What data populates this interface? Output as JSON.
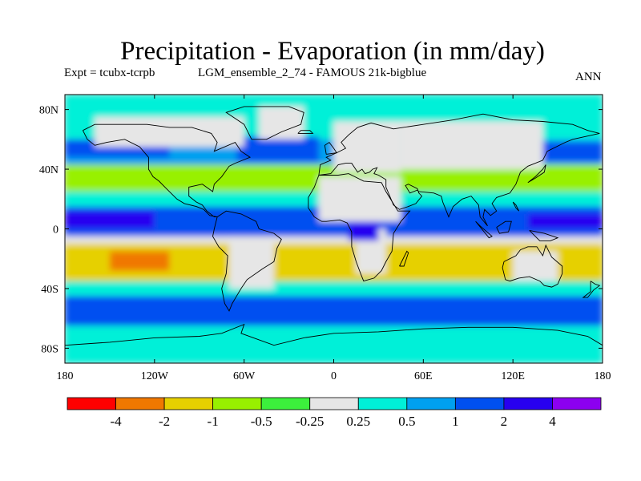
{
  "title": "Precipitation - Evaporation (in mm/day)",
  "subtitle_left": "Expt = tcubx-tcrpb",
  "subtitle_center": "LGM_ensemble_2_74 - FAMOUS 21k-bigblue",
  "subtitle_right": "ANN",
  "map": {
    "lon_range": [
      -180,
      180
    ],
    "lat_range": [
      -90,
      90
    ],
    "x_ticks": [
      {
        "value": -180,
        "label": "180"
      },
      {
        "value": -120,
        "label": "120W"
      },
      {
        "value": -60,
        "label": "60W"
      },
      {
        "value": 0,
        "label": "0"
      },
      {
        "value": 60,
        "label": "60E"
      },
      {
        "value": 120,
        "label": "120E"
      },
      {
        "value": 180,
        "label": "180"
      }
    ],
    "y_ticks": [
      {
        "value": 80,
        "label": "80N"
      },
      {
        "value": 40,
        "label": "40N"
      },
      {
        "value": 0,
        "label": "0"
      },
      {
        "value": -40,
        "label": "40S"
      },
      {
        "value": -80,
        "label": "80S"
      }
    ],
    "regions": [
      {
        "lonmin": -180,
        "lonmax": 180,
        "latmin": 60,
        "latmax": 90,
        "cls": 6
      },
      {
        "lonmin": -180,
        "lonmax": 180,
        "latmin": 43,
        "latmax": 60,
        "cls": 7
      },
      {
        "lonmin": -180,
        "lonmax": -110,
        "latmin": 48,
        "latmax": 60,
        "cls": 8
      },
      {
        "lonmin": 130,
        "lonmax": 180,
        "latmin": 45,
        "latmax": 58,
        "cls": 8
      },
      {
        "lonmin": -65,
        "lonmax": -10,
        "latmin": 45,
        "latmax": 62,
        "cls": 8
      },
      {
        "lonmin": -180,
        "lonmax": 180,
        "latmin": 25,
        "latmax": 43,
        "cls": 3
      },
      {
        "lonmin": -180,
        "lonmax": 180,
        "latmin": 15,
        "latmax": 25,
        "cls": 6
      },
      {
        "lonmin": -180,
        "lonmax": 180,
        "latmin": -5,
        "latmax": 15,
        "cls": 8
      },
      {
        "lonmin": -180,
        "lonmax": -120,
        "latmin": 0,
        "latmax": 12,
        "cls": 9
      },
      {
        "lonmin": 130,
        "lonmax": 180,
        "latmin": 0,
        "latmax": 10,
        "cls": 9
      },
      {
        "lonmin": -180,
        "lonmax": 180,
        "latmin": -10,
        "latmax": -5,
        "cls": 5
      },
      {
        "lonmin": -180,
        "lonmax": 180,
        "latmin": -35,
        "latmax": -10,
        "cls": 2
      },
      {
        "lonmin": -150,
        "lonmax": -110,
        "latmin": -28,
        "latmax": -15,
        "cls": 1
      },
      {
        "lonmin": -180,
        "lonmax": 180,
        "latmin": -45,
        "latmax": -35,
        "cls": 6
      },
      {
        "lonmin": -180,
        "lonmax": 180,
        "latmin": -65,
        "latmax": -45,
        "cls": 8
      },
      {
        "lonmin": -180,
        "lonmax": 180,
        "latmin": -90,
        "latmax": -65,
        "cls": 6
      },
      {
        "lonmin": -10,
        "lonmax": 45,
        "latmin": 5,
        "latmax": 35,
        "cls": 5
      },
      {
        "lonmin": 0,
        "lonmax": 45,
        "latmin": 38,
        "latmax": 72,
        "cls": 5
      },
      {
        "lonmin": 45,
        "lonmax": 140,
        "latmin": 40,
        "latmax": 72,
        "cls": 5
      },
      {
        "lonmin": -160,
        "lonmax": -60,
        "latmin": 55,
        "latmax": 75,
        "cls": 5
      },
      {
        "lonmin": 15,
        "lonmax": 35,
        "latmin": -30,
        "latmax": 0,
        "cls": 5
      },
      {
        "lonmin": 10,
        "lonmax": 30,
        "latmin": -8,
        "latmax": 5,
        "cls": 9
      },
      {
        "lonmin": 120,
        "lonmax": 150,
        "latmin": -35,
        "latmax": -15,
        "cls": 5
      },
      {
        "lonmin": -70,
        "lonmax": -40,
        "latmin": -40,
        "latmax": -5,
        "cls": 5
      },
      {
        "lonmin": -50,
        "lonmax": -20,
        "latmin": 60,
        "latmax": 82,
        "cls": 5
      }
    ],
    "coastlines": [
      [
        [
          -168,
          66
        ],
        [
          -160,
          70
        ],
        [
          -140,
          70
        ],
        [
          -125,
          70
        ],
        [
          -110,
          68
        ],
        [
          -95,
          68
        ],
        [
          -82,
          64
        ],
        [
          -78,
          58
        ],
        [
          -80,
          52
        ],
        [
          -66,
          58
        ],
        [
          -62,
          52
        ],
        [
          -56,
          48
        ],
        [
          -66,
          44
        ],
        [
          -70,
          42
        ],
        [
          -75,
          35
        ],
        [
          -80,
          30
        ],
        [
          -81,
          25
        ],
        [
          -88,
          30
        ],
        [
          -97,
          28
        ],
        [
          -97,
          22
        ],
        [
          -92,
          18
        ],
        [
          -88,
          16
        ],
        [
          -85,
          12
        ],
        [
          -80,
          8
        ],
        [
          -78,
          8
        ],
        [
          -83,
          9
        ],
        [
          -87,
          13
        ],
        [
          -92,
          15
        ],
        [
          -100,
          17
        ],
        [
          -105,
          20
        ],
        [
          -112,
          27
        ],
        [
          -117,
          32
        ],
        [
          -121,
          35
        ],
        [
          -124,
          40
        ],
        [
          -124,
          48
        ],
        [
          -130,
          55
        ],
        [
          -140,
          60
        ],
        [
          -152,
          58
        ],
        [
          -160,
          56
        ],
        [
          -165,
          60
        ],
        [
          -168,
          66
        ]
      ],
      [
        [
          -78,
          8
        ],
        [
          -72,
          12
        ],
        [
          -62,
          10
        ],
        [
          -52,
          5
        ],
        [
          -50,
          0
        ],
        [
          -40,
          -3
        ],
        [
          -35,
          -7
        ],
        [
          -38,
          -13
        ],
        [
          -40,
          -22
        ],
        [
          -48,
          -27
        ],
        [
          -58,
          -34
        ],
        [
          -62,
          -40
        ],
        [
          -65,
          -45
        ],
        [
          -68,
          -50
        ],
        [
          -70,
          -55
        ],
        [
          -73,
          -50
        ],
        [
          -75,
          -40
        ],
        [
          -72,
          -30
        ],
        [
          -71,
          -18
        ],
        [
          -77,
          -12
        ],
        [
          -81,
          -5
        ],
        [
          -80,
          0
        ],
        [
          -78,
          8
        ]
      ],
      [
        [
          -10,
          36
        ],
        [
          -5,
          36
        ],
        [
          3,
          36
        ],
        [
          10,
          37
        ],
        [
          20,
          32
        ],
        [
          32,
          31
        ],
        [
          35,
          25
        ],
        [
          43,
          12
        ],
        [
          51,
          12
        ],
        [
          45,
          5
        ],
        [
          40,
          -3
        ],
        [
          39,
          -15
        ],
        [
          35,
          -22
        ],
        [
          32,
          -28
        ],
        [
          27,
          -33
        ],
        [
          20,
          -35
        ],
        [
          18,
          -30
        ],
        [
          15,
          -22
        ],
        [
          12,
          -12
        ],
        [
          12,
          -2
        ],
        [
          9,
          4
        ],
        [
          4,
          6
        ],
        [
          -5,
          5
        ],
        [
          -8,
          5
        ],
        [
          -13,
          8
        ],
        [
          -17,
          14
        ],
        [
          -17,
          21
        ],
        [
          -13,
          28
        ],
        [
          -10,
          36
        ]
      ],
      [
        [
          -10,
          36
        ],
        [
          -9,
          43
        ],
        [
          -2,
          46
        ],
        [
          -5,
          48
        ],
        [
          2,
          51
        ],
        [
          8,
          54
        ],
        [
          5,
          58
        ],
        [
          10,
          63
        ],
        [
          16,
          68
        ],
        [
          25,
          71
        ],
        [
          40,
          67
        ],
        [
          60,
          70
        ],
        [
          80,
          73
        ],
        [
          100,
          77
        ],
        [
          120,
          73
        ],
        [
          140,
          72
        ],
        [
          160,
          70
        ],
        [
          170,
          66
        ],
        [
          178,
          64
        ],
        [
          160,
          60
        ],
        [
          155,
          58
        ],
        [
          143,
          52
        ],
        [
          140,
          46
        ],
        [
          130,
          42
        ],
        [
          125,
          38
        ],
        [
          122,
          30
        ],
        [
          118,
          24
        ],
        [
          109,
          21
        ],
        [
          106,
          17
        ],
        [
          109,
          12
        ],
        [
          105,
          9
        ],
        [
          101,
          13
        ],
        [
          100,
          8
        ],
        [
          103,
          2
        ],
        [
          98,
          8
        ],
        [
          97,
          16
        ],
        [
          92,
          22
        ],
        [
          86,
          20
        ],
        [
          80,
          15
        ],
        [
          77,
          8
        ],
        [
          73,
          18
        ],
        [
          72,
          22
        ],
        [
          67,
          24
        ],
        [
          57,
          25
        ],
        [
          56,
          26
        ],
        [
          51,
          24
        ],
        [
          48,
          29
        ],
        [
          50,
          30
        ],
        [
          56,
          27
        ],
        [
          57,
          24
        ],
        [
          59,
          22
        ],
        [
          55,
          17
        ],
        [
          50,
          15
        ],
        [
          44,
          13
        ],
        [
          40,
          16
        ],
        [
          35,
          28
        ],
        [
          35,
          33
        ],
        [
          30,
          36
        ],
        [
          27,
          37
        ],
        [
          29,
          41
        ],
        [
          26,
          40
        ],
        [
          24,
          38
        ],
        [
          21,
          37
        ],
        [
          19,
          40
        ],
        [
          16,
          38
        ],
        [
          12,
          44
        ],
        [
          8,
          44
        ],
        [
          3,
          43
        ],
        [
          -2,
          37
        ],
        [
          -10,
          36
        ]
      ],
      [
        [
          114,
          -22
        ],
        [
          113,
          -26
        ],
        [
          115,
          -34
        ],
        [
          118,
          -35
        ],
        [
          124,
          -33
        ],
        [
          131,
          -32
        ],
        [
          138,
          -35
        ],
        [
          141,
          -38
        ],
        [
          146,
          -39
        ],
        [
          150,
          -37
        ],
        [
          153,
          -30
        ],
        [
          153,
          -25
        ],
        [
          146,
          -19
        ],
        [
          142,
          -11
        ],
        [
          140,
          -18
        ],
        [
          136,
          -12
        ],
        [
          130,
          -12
        ],
        [
          125,
          -14
        ],
        [
          122,
          -18
        ],
        [
          114,
          -22
        ]
      ],
      [
        [
          -180,
          -78
        ],
        [
          -150,
          -76
        ],
        [
          -120,
          -73
        ],
        [
          -90,
          -72
        ],
        [
          -75,
          -70
        ],
        [
          -60,
          -64
        ],
        [
          -62,
          -70
        ],
        [
          -40,
          -78
        ],
        [
          -20,
          -73
        ],
        [
          0,
          -70
        ],
        [
          30,
          -69
        ],
        [
          60,
          -67
        ],
        [
          90,
          -66
        ],
        [
          120,
          -66
        ],
        [
          150,
          -68
        ],
        [
          170,
          -72
        ],
        [
          180,
          -78
        ]
      ],
      [
        [
          -55,
          60
        ],
        [
          -45,
          60
        ],
        [
          -35,
          65
        ],
        [
          -22,
          70
        ],
        [
          -20,
          78
        ],
        [
          -30,
          82
        ],
        [
          -60,
          82
        ],
        [
          -72,
          78
        ],
        [
          -60,
          70
        ],
        [
          -55,
          60
        ]
      ],
      [
        [
          -5,
          50
        ],
        [
          2,
          51
        ],
        [
          0,
          54
        ],
        [
          -3,
          58
        ],
        [
          -6,
          56
        ],
        [
          -5,
          50
        ]
      ],
      [
        [
          130,
          31
        ],
        [
          135,
          34
        ],
        [
          141,
          38
        ],
        [
          142,
          43
        ],
        [
          140,
          40
        ],
        [
          135,
          35
        ],
        [
          130,
          31
        ]
      ],
      [
        [
          95,
          5
        ],
        [
          104,
          -6
        ],
        [
          106,
          -5
        ],
        [
          98,
          2
        ],
        [
          95,
          5
        ]
      ],
      [
        [
          109,
          1
        ],
        [
          115,
          5
        ],
        [
          119,
          5
        ],
        [
          117,
          -2
        ],
        [
          111,
          -3
        ],
        [
          109,
          1
        ]
      ],
      [
        [
          131,
          -1
        ],
        [
          141,
          -3
        ],
        [
          150,
          -6
        ],
        [
          145,
          -8
        ],
        [
          138,
          -8
        ],
        [
          131,
          -1
        ]
      ],
      [
        [
          44,
          -25
        ],
        [
          49,
          -15
        ],
        [
          50,
          -16
        ],
        [
          47,
          -25
        ],
        [
          44,
          -25
        ]
      ],
      [
        [
          172,
          -35
        ],
        [
          175,
          -37
        ],
        [
          178,
          -38
        ],
        [
          174,
          -41
        ],
        [
          170,
          -46
        ],
        [
          167,
          -46
        ],
        [
          172,
          -42
        ],
        [
          172,
          -35
        ]
      ],
      [
        [
          120,
          18
        ],
        [
          122,
          14
        ],
        [
          124,
          12
        ],
        [
          122,
          16
        ],
        [
          120,
          18
        ]
      ],
      [
        [
          -24,
          64
        ],
        [
          -14,
          64
        ],
        [
          -16,
          66
        ],
        [
          -22,
          66
        ],
        [
          -24,
          64
        ]
      ]
    ]
  },
  "colorbar": {
    "colors": [
      "#ff0000",
      "#f07800",
      "#e6d000",
      "#98f000",
      "#3cf03c",
      "#e6e6e6",
      "#00f0d8",
      "#00a0f0",
      "#0050f0",
      "#2800f0",
      "#8c00f0"
    ],
    "labels": [
      "-4",
      "-2",
      "-1",
      "-0.5",
      "-0.25",
      "0.25",
      "0.5",
      "1",
      "2",
      "4"
    ]
  }
}
